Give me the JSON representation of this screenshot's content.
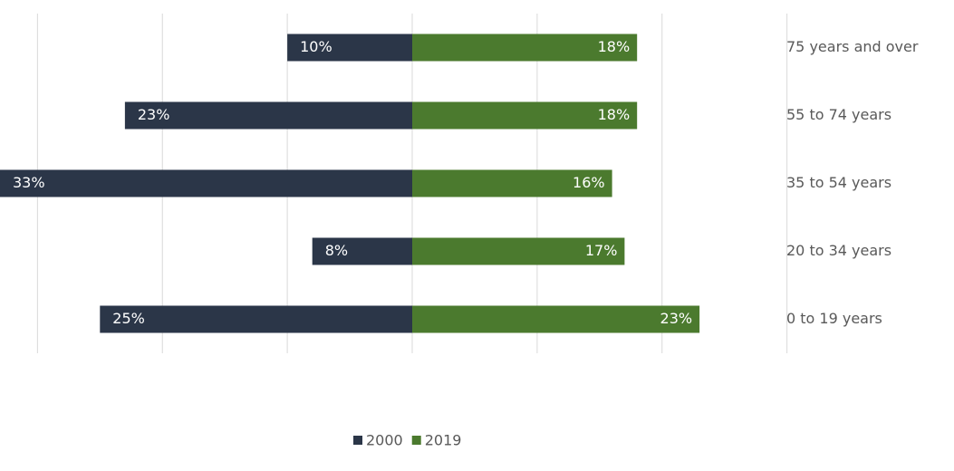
{
  "chart_data": {
    "type": "butterfly",
    "categories": [
      "75 years and over",
      "55 to 74 years",
      "35 to 54 years",
      "20 to 34 years",
      "0 to 19 years"
    ],
    "series": [
      {
        "name": "2000",
        "color": "#2b3648",
        "values": [
          10,
          23,
          33,
          8,
          25
        ],
        "value_labels": [
          "10%",
          "23%",
          "33%",
          "8%",
          "25%"
        ]
      },
      {
        "name": "2019",
        "color": "#4b7a2e",
        "values": [
          18,
          18,
          16,
          17,
          23
        ],
        "value_labels": [
          "18%",
          "18%",
          "16%",
          "17%",
          "23%"
        ]
      }
    ],
    "xlim": [
      -33,
      33
    ],
    "xticks": [
      -30,
      -20,
      -10,
      0,
      10,
      20,
      30
    ],
    "grid": true,
    "legend": "bottom"
  }
}
